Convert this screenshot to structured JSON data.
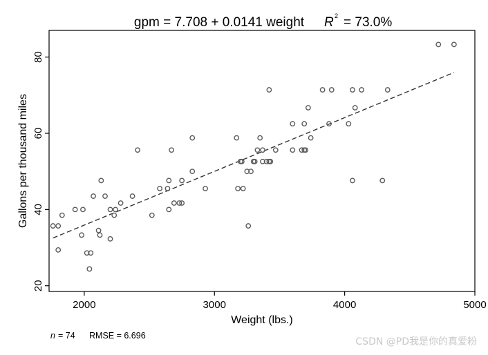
{
  "chart_data": {
    "type": "scatter",
    "title_eq": "gpm = 7.708 + 0.0141 weight",
    "title_r2_label": "R",
    "title_r2_exp": "2",
    "title_r2_value": "= 73.0%",
    "xlabel": "Weight (lbs.)",
    "ylabel": "Gallons per thousand miles",
    "xlim": [
      1730,
      5000
    ],
    "ylim": [
      18.5,
      87
    ],
    "xticks": [
      2000,
      3000,
      4000,
      5000
    ],
    "yticks": [
      20,
      40,
      60,
      80
    ],
    "fit_line": {
      "intercept": 7.708,
      "slope": 0.0141,
      "x_range": [
        1760,
        4840
      ],
      "style": "dashed"
    },
    "note_n_label": "n",
    "note_n_value": "= 74",
    "note_rmse": "RMSE = 6.696",
    "marker": "hollow-circle",
    "series": [
      {
        "points": [
          [
            1760,
            35.7
          ],
          [
            1800,
            35.7
          ],
          [
            1800,
            29.4
          ],
          [
            1830,
            38.5
          ],
          [
            1930,
            40.0
          ],
          [
            1980,
            33.3
          ],
          [
            1990,
            40.0
          ],
          [
            2020,
            28.6
          ],
          [
            2040,
            24.4
          ],
          [
            2050,
            28.6
          ],
          [
            2070,
            43.5
          ],
          [
            2110,
            34.5
          ],
          [
            2120,
            33.3
          ],
          [
            2130,
            47.6
          ],
          [
            2160,
            43.5
          ],
          [
            2200,
            32.3
          ],
          [
            2200,
            40.0
          ],
          [
            2230,
            38.5
          ],
          [
            2240,
            40.0
          ],
          [
            2280,
            41.7
          ],
          [
            2370,
            43.5
          ],
          [
            2410,
            55.6
          ],
          [
            2520,
            38.5
          ],
          [
            2580,
            45.5
          ],
          [
            2640,
            45.5
          ],
          [
            2650,
            40.0
          ],
          [
            2650,
            47.6
          ],
          [
            2670,
            55.6
          ],
          [
            2690,
            41.7
          ],
          [
            2730,
            41.7
          ],
          [
            2750,
            41.7
          ],
          [
            2750,
            47.6
          ],
          [
            2830,
            50.0
          ],
          [
            2830,
            58.8
          ],
          [
            2930,
            45.5
          ],
          [
            3170,
            58.8
          ],
          [
            3180,
            45.5
          ],
          [
            3200,
            52.6
          ],
          [
            3210,
            52.6
          ],
          [
            3220,
            45.5
          ],
          [
            3250,
            50.0
          ],
          [
            3260,
            35.7
          ],
          [
            3280,
            50.0
          ],
          [
            3300,
            52.6
          ],
          [
            3310,
            52.6
          ],
          [
            3330,
            55.6
          ],
          [
            3350,
            58.8
          ],
          [
            3370,
            55.6
          ],
          [
            3370,
            52.6
          ],
          [
            3400,
            52.6
          ],
          [
            3420,
            52.6
          ],
          [
            3420,
            71.4
          ],
          [
            3430,
            52.6
          ],
          [
            3470,
            55.6
          ],
          [
            3600,
            55.6
          ],
          [
            3600,
            62.5
          ],
          [
            3670,
            55.6
          ],
          [
            3690,
            62.5
          ],
          [
            3690,
            55.6
          ],
          [
            3700,
            55.6
          ],
          [
            3720,
            66.7
          ],
          [
            3740,
            58.8
          ],
          [
            3830,
            71.4
          ],
          [
            3880,
            62.5
          ],
          [
            3900,
            71.4
          ],
          [
            4030,
            62.5
          ],
          [
            4060,
            71.4
          ],
          [
            4060,
            47.6
          ],
          [
            4080,
            66.7
          ],
          [
            4130,
            71.4
          ],
          [
            4290,
            47.6
          ],
          [
            4330,
            71.4
          ],
          [
            4720,
            83.3
          ],
          [
            4840,
            83.3
          ]
        ]
      }
    ]
  },
  "watermark": "CSDN @PD我是你的真爱粉"
}
